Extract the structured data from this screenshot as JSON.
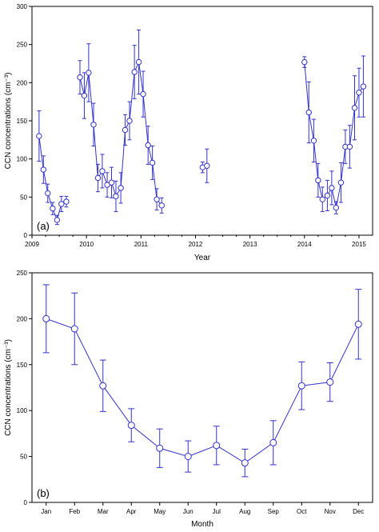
{
  "colors": {
    "series": "#3333cc",
    "axis": "#000000",
    "background": "#ffffff"
  },
  "chart_data": [
    {
      "type": "line",
      "panel_label": "(a)",
      "xlabel": "Year",
      "ylabel": "CCN concentrations (cm⁻³)",
      "xlim": [
        2009.0,
        2015.25
      ],
      "ylim": [
        0,
        300
      ],
      "xticks": [
        2009,
        2010,
        2011,
        2012,
        2013,
        2014,
        2015
      ],
      "yticks": [
        0,
        50,
        100,
        150,
        200,
        250,
        300
      ],
      "error_bars": true,
      "marker": "open-circle",
      "segments": [
        [
          {
            "x": 2009.13,
            "y": 130,
            "err": 33
          },
          {
            "x": 2009.21,
            "y": 86,
            "err": 18
          },
          {
            "x": 2009.29,
            "y": 55,
            "err": 12
          },
          {
            "x": 2009.38,
            "y": 35,
            "err": 8
          },
          {
            "x": 2009.46,
            "y": 20,
            "err": 6
          },
          {
            "x": 2009.54,
            "y": 41,
            "err": 10
          },
          {
            "x": 2009.63,
            "y": 44,
            "err": 7
          }
        ],
        [
          {
            "x": 2009.88,
            "y": 207,
            "err": 22
          },
          {
            "x": 2009.96,
            "y": 183,
            "err": 30
          },
          {
            "x": 2010.04,
            "y": 213,
            "err": 38
          },
          {
            "x": 2010.13,
            "y": 145,
            "err": 28
          },
          {
            "x": 2010.21,
            "y": 75,
            "err": 18
          },
          {
            "x": 2010.29,
            "y": 84,
            "err": 22
          },
          {
            "x": 2010.38,
            "y": 66,
            "err": 16
          },
          {
            "x": 2010.46,
            "y": 69,
            "err": 20
          },
          {
            "x": 2010.54,
            "y": 51,
            "err": 20
          },
          {
            "x": 2010.63,
            "y": 62,
            "err": 20
          },
          {
            "x": 2010.71,
            "y": 138,
            "err": 20
          },
          {
            "x": 2010.79,
            "y": 150,
            "err": 25
          },
          {
            "x": 2010.88,
            "y": 214,
            "err": 35
          },
          {
            "x": 2010.96,
            "y": 227,
            "err": 42
          },
          {
            "x": 2011.04,
            "y": 185,
            "err": 30
          },
          {
            "x": 2011.13,
            "y": 118,
            "err": 25
          },
          {
            "x": 2011.21,
            "y": 95,
            "err": 22
          },
          {
            "x": 2011.29,
            "y": 47,
            "err": 14
          },
          {
            "x": 2011.38,
            "y": 39,
            "err": 10
          }
        ],
        [
          {
            "x": 2012.13,
            "y": 89,
            "err": 7
          },
          {
            "x": 2012.21,
            "y": 91,
            "err": 22
          }
        ],
        [
          {
            "x": 2014.0,
            "y": 227,
            "err": 7
          },
          {
            "x": 2014.08,
            "y": 161,
            "err": 40
          },
          {
            "x": 2014.17,
            "y": 124,
            "err": 28
          },
          {
            "x": 2014.25,
            "y": 72,
            "err": 22
          },
          {
            "x": 2014.33,
            "y": 47,
            "err": 16
          },
          {
            "x": 2014.42,
            "y": 52,
            "err": 20
          },
          {
            "x": 2014.5,
            "y": 62,
            "err": 22
          },
          {
            "x": 2014.58,
            "y": 36,
            "err": 8
          },
          {
            "x": 2014.67,
            "y": 69,
            "err": 26
          },
          {
            "x": 2014.75,
            "y": 116,
            "err": 22
          },
          {
            "x": 2014.83,
            "y": 116,
            "err": 28
          },
          {
            "x": 2014.92,
            "y": 167,
            "err": 42
          },
          {
            "x": 2015.0,
            "y": 187,
            "err": 32
          },
          {
            "x": 2015.08,
            "y": 195,
            "err": 40
          }
        ]
      ]
    },
    {
      "type": "line",
      "panel_label": "(b)",
      "xlabel": "Month",
      "ylabel": "CCN concentrations (cm⁻³)",
      "ylim": [
        0,
        250
      ],
      "yticks": [
        0,
        50,
        100,
        150,
        200,
        250
      ],
      "categories": [
        "Jan",
        "Feb",
        "Mar",
        "Apr",
        "May",
        "Jun",
        "Jul",
        "Aug",
        "Sep",
        "Oct",
        "Nov",
        "Dec"
      ],
      "error_bars": true,
      "marker": "open-circle",
      "values": [
        200,
        189,
        127,
        84,
        59,
        50,
        62,
        43,
        65,
        127,
        131,
        194
      ],
      "errors": [
        37,
        39,
        28,
        18,
        21,
        17,
        21,
        15,
        24,
        26,
        21,
        38
      ]
    }
  ]
}
